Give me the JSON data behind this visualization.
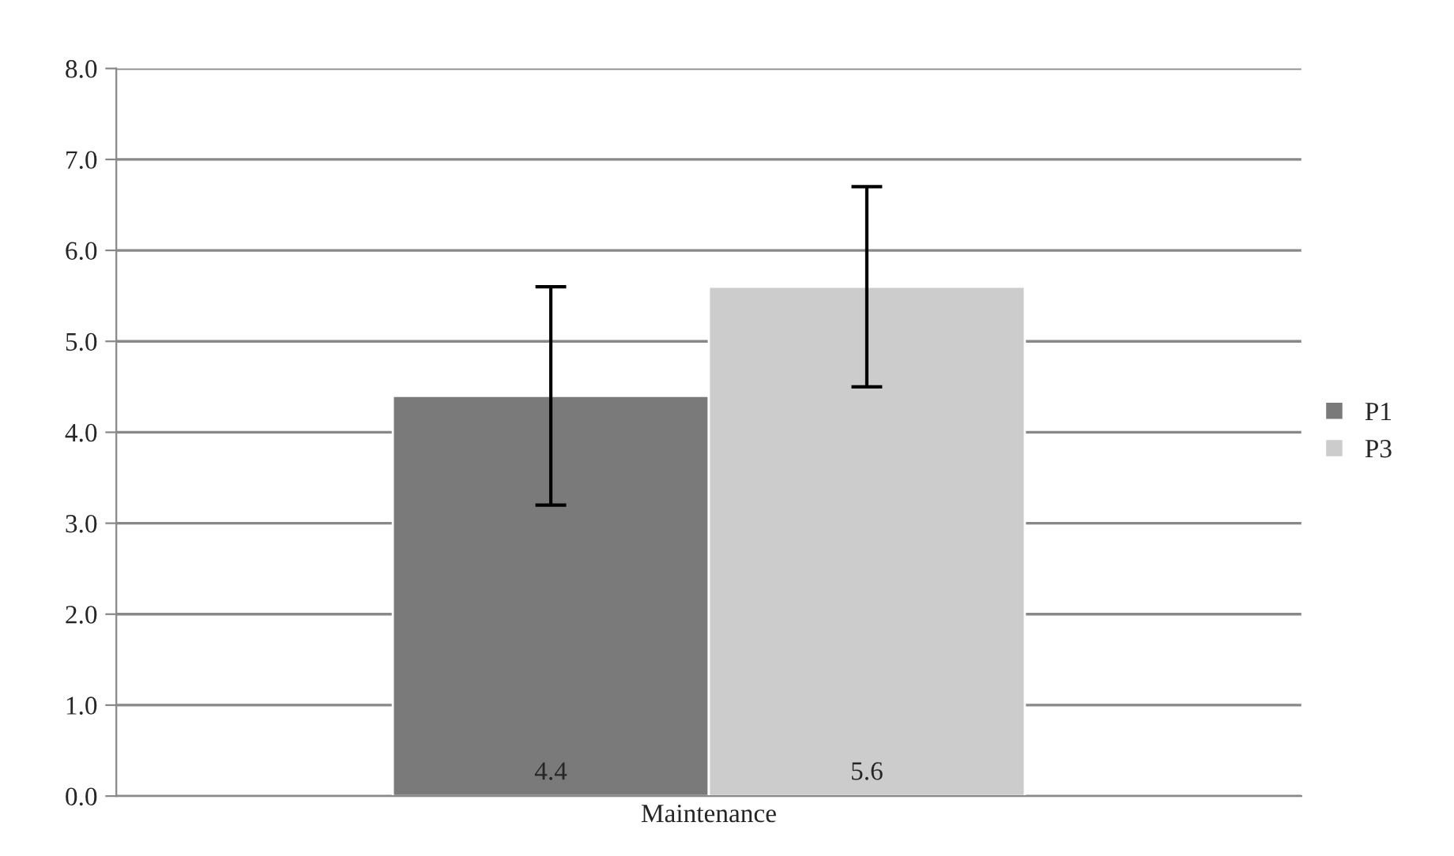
{
  "chart_data": {
    "type": "bar",
    "categories": [
      "Maintenance"
    ],
    "series": [
      {
        "name": "P1",
        "color": "#7a7a7a",
        "values": [
          4.4
        ],
        "errors": [
          1.2
        ]
      },
      {
        "name": "P3",
        "color": "#cccccc",
        "values": [
          5.6
        ],
        "errors": [
          1.1
        ]
      }
    ],
    "ylim": [
      0,
      8
    ],
    "yticks": [
      {
        "value": 0,
        "label": "0.0"
      },
      {
        "value": 1,
        "label": "1.0"
      },
      {
        "value": 2,
        "label": "2.0"
      },
      {
        "value": 3,
        "label": "3.0"
      },
      {
        "value": 4,
        "label": "4.0"
      },
      {
        "value": 5,
        "label": "5.0"
      },
      {
        "value": 6,
        "label": "6.0"
      },
      {
        "value": 7,
        "label": "7.0"
      },
      {
        "value": 8,
        "label": "8.0"
      }
    ],
    "grid": "y",
    "legend": "right",
    "data_labels": true
  }
}
